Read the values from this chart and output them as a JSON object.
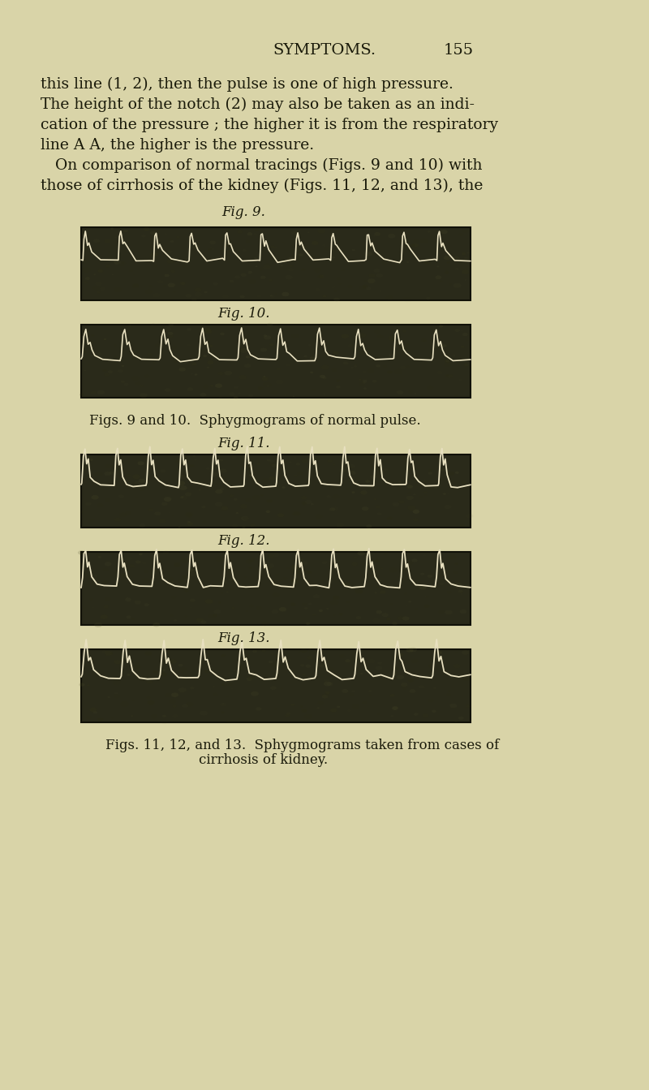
{
  "background_color": "#d9d4a8",
  "page_background": "#d4ce9e",
  "header_text": "SYMPTOMS.",
  "page_number": "155",
  "body_text_lines": [
    "this line (1, 2), then the pulse is one of high pressure.",
    "The height of the notch (2) may also be taken as an indi-",
    "cation of the pressure ; the higher it is from the respiratory",
    "line A A, the higher is the pressure.",
    "   On comparison of normal tracings (Figs. 9 and 10) with",
    "those of cirrhosis of the kidney (Figs. 11, 12, and 13), the"
  ],
  "fig_labels": [
    "Fig. 9.",
    "Fig. 10.",
    "Fig. 11.",
    "Fig. 12.",
    "Fig. 13."
  ],
  "caption1": "Figs. 9 and 10.  Sphygmograms of normal pulse.",
  "caption2": "Figs. 11, 12, and 13.  Sphygmograms taken from cases of",
  "caption2b": "cirrhosis of kidney.",
  "image_bg_color": "#2a2a1a",
  "image_bg_color2": "#3a3a20",
  "pulse_line_color": "#e8e0c0",
  "text_color": "#1a1a0a",
  "header_color": "#1a1a0a",
  "font_size_body": 13.5,
  "font_size_label": 12,
  "font_size_header": 14
}
